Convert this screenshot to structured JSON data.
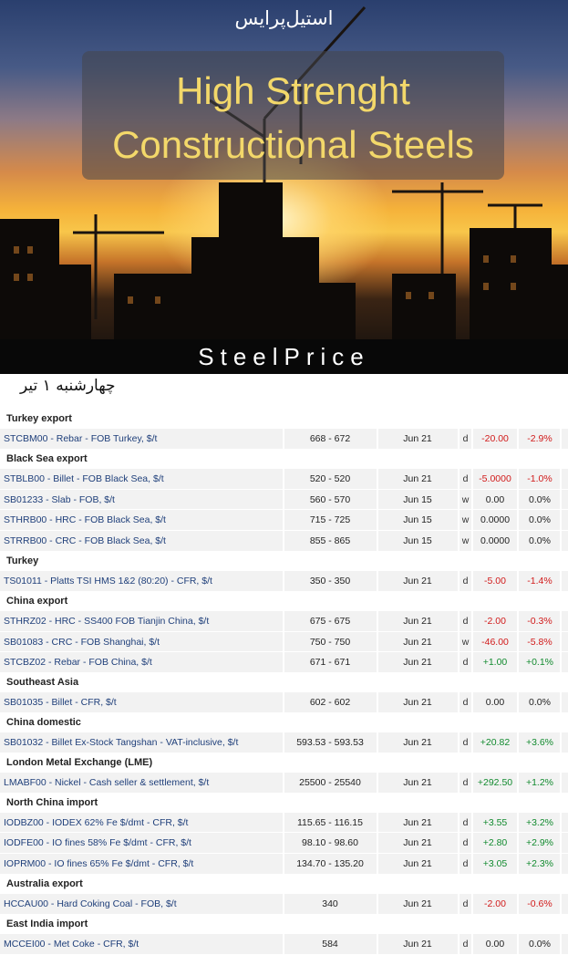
{
  "banner": {
    "fa_title": "استیل‌پرایس",
    "title_line1": "High Strenght",
    "title_line2": "Constructional Steels",
    "brand": "SteelPrice"
  },
  "date_label": "چهارشنبه ۱ تیر",
  "colors": {
    "negative": "#d11a1a",
    "positive": "#118a2e",
    "link": "#1f3f7a",
    "title_text": "#f3d86a"
  },
  "sections": [
    {
      "title": "Turkey export",
      "rows": [
        {
          "name": "STCBM00 - Rebar - FOB Turkey, $/t",
          "range": "668 - 672",
          "date": "Jun 21",
          "freq": "d",
          "change": "-20.00",
          "pct": "-2.9%",
          "dir": "neg"
        }
      ]
    },
    {
      "title": "Black Sea export",
      "rows": [
        {
          "name": "STBLB00 - Billet - FOB Black Sea, $/t",
          "range": "520 - 520",
          "date": "Jun 21",
          "freq": "d",
          "change": "-5.0000",
          "pct": "-1.0%",
          "dir": "neg"
        },
        {
          "name": "SB01233 - Slab - FOB, $/t",
          "range": "560 - 570",
          "date": "Jun 15",
          "freq": "w",
          "change": "0.00",
          "pct": "0.0%",
          "dir": "zero"
        },
        {
          "name": "STHRB00 - HRC - FOB Black Sea, $/t",
          "range": "715 - 725",
          "date": "Jun 15",
          "freq": "w",
          "change": "0.0000",
          "pct": "0.0%",
          "dir": "zero"
        },
        {
          "name": "STRRB00 - CRC - FOB Black Sea, $/t",
          "range": "855 - 865",
          "date": "Jun 15",
          "freq": "w",
          "change": "0.0000",
          "pct": "0.0%",
          "dir": "zero"
        }
      ]
    },
    {
      "title": "Turkey",
      "rows": [
        {
          "name": "TS01011 - Platts TSI HMS 1&2 (80:20) - CFR, $/t",
          "range": "350 - 350",
          "date": "Jun 21",
          "freq": "d",
          "change": "-5.00",
          "pct": "-1.4%",
          "dir": "neg"
        }
      ]
    },
    {
      "title": "China export",
      "rows": [
        {
          "name": "STHRZ02 - HRC - SS400 FOB Tianjin China, $/t",
          "range": "675 - 675",
          "date": "Jun 21",
          "freq": "d",
          "change": "-2.00",
          "pct": "-0.3%",
          "dir": "neg"
        },
        {
          "name": "SB01083 - CRC - FOB Shanghai, $/t",
          "range": "750 - 750",
          "date": "Jun 21",
          "freq": "w",
          "change": "-46.00",
          "pct": "-5.8%",
          "dir": "neg"
        },
        {
          "name": "STCBZ02 - Rebar - FOB China, $/t",
          "range": "671 - 671",
          "date": "Jun 21",
          "freq": "d",
          "change": "+1.00",
          "pct": "+0.1%",
          "dir": "pos"
        }
      ]
    },
    {
      "title": "Southeast Asia",
      "rows": [
        {
          "name": "SB01035 - Billet - CFR, $/t",
          "range": "602 - 602",
          "date": "Jun 21",
          "freq": "d",
          "change": "0.00",
          "pct": "0.0%",
          "dir": "zero"
        }
      ]
    },
    {
      "title": "China domestic",
      "rows": [
        {
          "name": "SB01032 - Billet Ex-Stock Tangshan - VAT-inclusive, $/t",
          "range": "593.53 - 593.53",
          "date": "Jun 21",
          "freq": "d",
          "change": "+20.82",
          "pct": "+3.6%",
          "dir": "pos"
        }
      ]
    },
    {
      "title": "London Metal Exchange (LME)",
      "rows": [
        {
          "name": "LMABF00 - Nickel - Cash seller & settlement, $/t",
          "range": "25500 - 25540",
          "date": "Jun 21",
          "freq": "d",
          "change": "+292.50",
          "pct": "+1.2%",
          "dir": "pos"
        }
      ]
    },
    {
      "title": "North China import",
      "rows": [
        {
          "name": "IODBZ00 - IODEX 62% Fe $/dmt - CFR, $/t",
          "range": "115.65 - 116.15",
          "date": "Jun 21",
          "freq": "d",
          "change": "+3.55",
          "pct": "+3.2%",
          "dir": "pos"
        },
        {
          "name": "IODFE00 - IO fines 58% Fe $/dmt - CFR, $/t",
          "range": "98.10 - 98.60",
          "date": "Jun 21",
          "freq": "d",
          "change": "+2.80",
          "pct": "+2.9%",
          "dir": "pos"
        },
        {
          "name": "IOPRM00 - IO fines 65% Fe $/dmt - CFR, $/t",
          "range": "134.70 - 135.20",
          "date": "Jun 21",
          "freq": "d",
          "change": "+3.05",
          "pct": "+2.3%",
          "dir": "pos"
        }
      ]
    },
    {
      "title": "Australia export",
      "rows": [
        {
          "name": "HCCAU00 - Hard Coking Coal - FOB, $/t",
          "range": "340",
          "date": "Jun 21",
          "freq": "d",
          "change": "-2.00",
          "pct": "-0.6%",
          "dir": "neg"
        }
      ]
    },
    {
      "title": "East India import",
      "rows": [
        {
          "name": "MCCEI00 - Met Coke - CFR, $/t",
          "range": "584",
          "date": "Jun 21",
          "freq": "d",
          "change": "0.00",
          "pct": "0.0%",
          "dir": "zero"
        }
      ]
    }
  ]
}
